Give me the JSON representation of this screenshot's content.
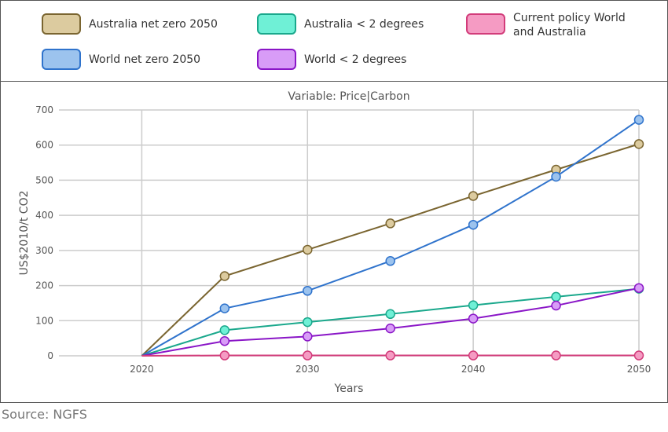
{
  "legend": [
    {
      "name": "Australia net zero 2050",
      "fill": "#dccb9f",
      "stroke": "#7a6530"
    },
    {
      "name": "Australia < 2 degrees",
      "fill": "#6ff0d6",
      "stroke": "#1aa88c"
    },
    {
      "name": "Current policy World\nand Australia",
      "fill": "#f59bc3",
      "stroke": "#d23c7a"
    },
    {
      "name": "World net zero 2050",
      "fill": "#9cc3ee",
      "stroke": "#2f73cc"
    },
    {
      "name": "World < 2 degrees",
      "fill": "#d89cf7",
      "stroke": "#8a16c7"
    }
  ],
  "source": "Source: NGFS",
  "chart_data": {
    "type": "line",
    "title": "Variable: Price|Carbon",
    "xlabel": "Years",
    "ylabel": "US$2010/t CO2",
    "xlim": [
      2015,
      2050
    ],
    "ylim": [
      0,
      700
    ],
    "x_ticks": [
      2020,
      2030,
      2040,
      2050
    ],
    "y_ticks": [
      0,
      100,
      200,
      300,
      400,
      500,
      600,
      700
    ],
    "grid": true,
    "legend_position": "top",
    "series": [
      {
        "name": "Australia net zero 2050",
        "color": "#7a6530",
        "fill": "#dccb9f",
        "x": [
          2020,
          2025,
          2030,
          2035,
          2040,
          2045,
          2050
        ],
        "values": [
          0,
          227,
          302,
          377,
          455,
          530,
          603
        ]
      },
      {
        "name": "World net zero 2050",
        "color": "#2f73cc",
        "fill": "#9cc3ee",
        "x": [
          2020,
          2025,
          2030,
          2035,
          2040,
          2045,
          2050
        ],
        "values": [
          0,
          135,
          185,
          270,
          373,
          510,
          672
        ]
      },
      {
        "name": "Australia < 2 degrees",
        "color": "#1aa88c",
        "fill": "#6ff0d6",
        "x": [
          2020,
          2025,
          2030,
          2035,
          2040,
          2045,
          2050
        ],
        "values": [
          0,
          73,
          96,
          119,
          144,
          168,
          191
        ]
      },
      {
        "name": "World < 2 degrees",
        "color": "#8a16c7",
        "fill": "#d89cf7",
        "x": [
          2020,
          2025,
          2030,
          2035,
          2040,
          2045,
          2050
        ],
        "values": [
          0,
          42,
          55,
          78,
          106,
          143,
          193
        ]
      },
      {
        "name": "Current policy World and Australia",
        "color": "#d23c7a",
        "fill": "#f59bc3",
        "x": [
          2020,
          2025,
          2030,
          2035,
          2040,
          2045,
          2050
        ],
        "values": [
          0,
          1,
          1,
          1,
          1,
          1,
          1
        ]
      }
    ]
  }
}
